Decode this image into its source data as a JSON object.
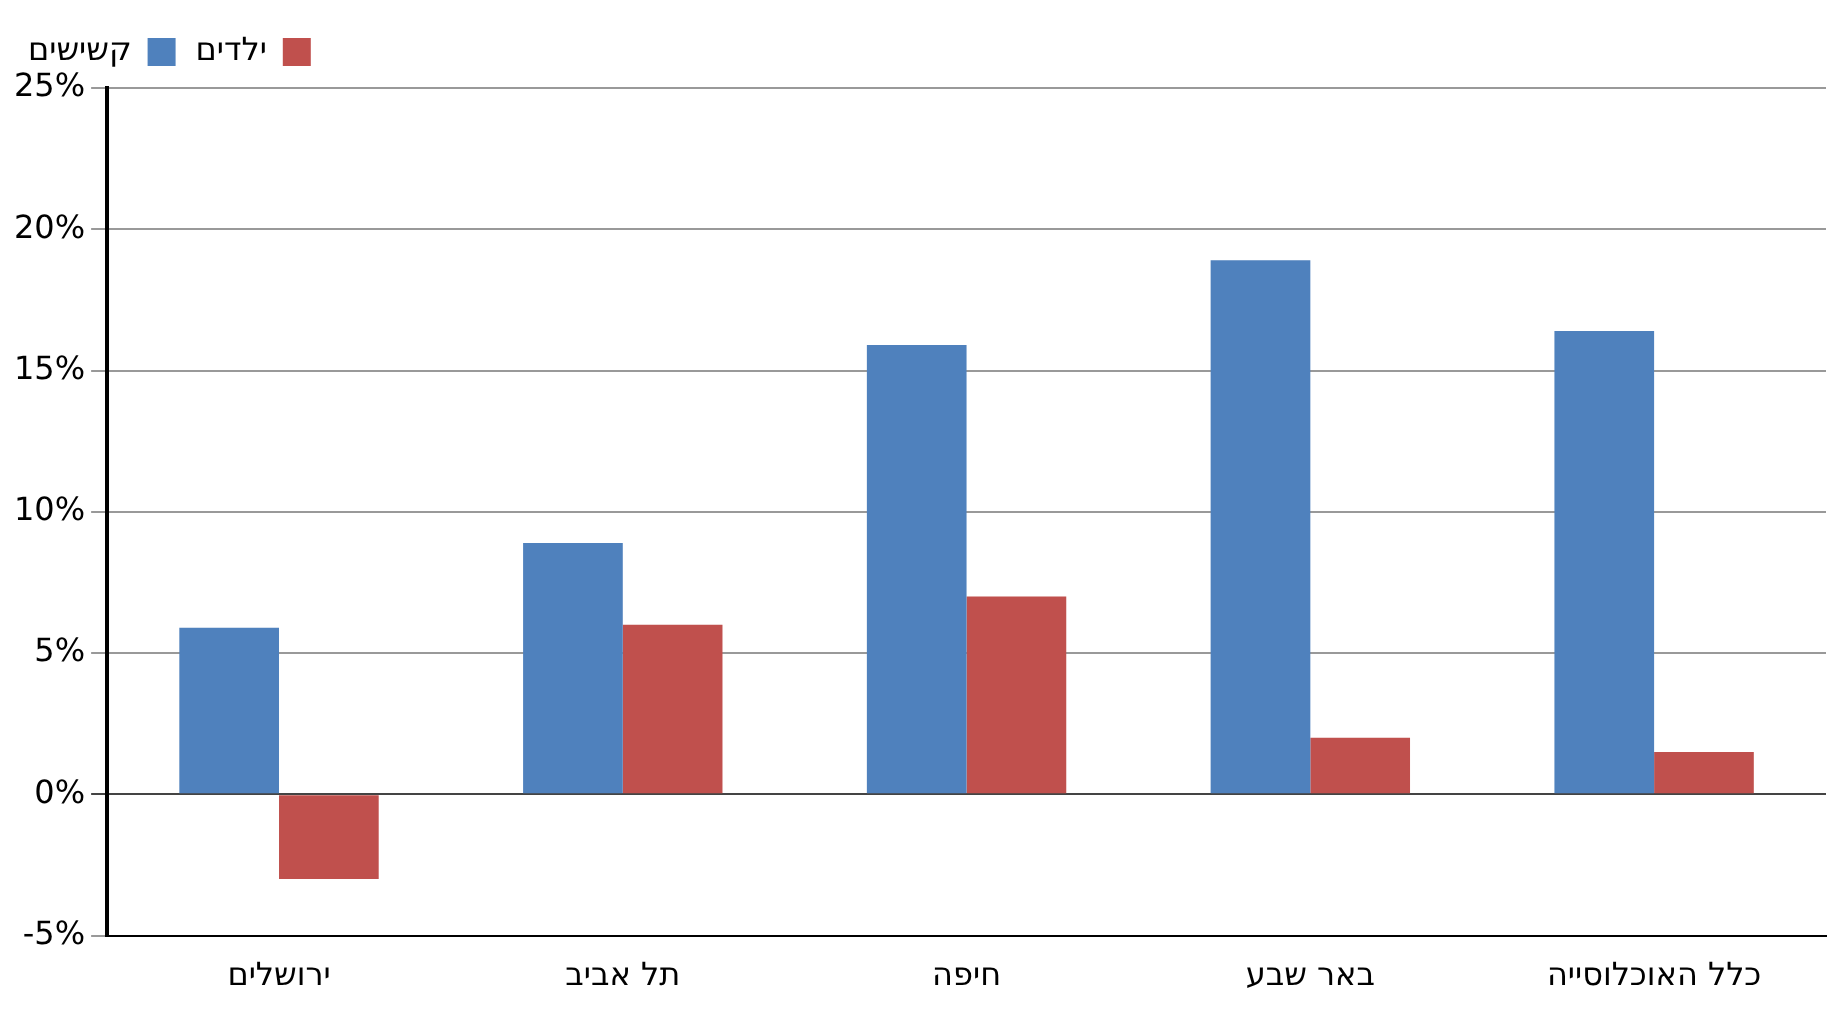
{
  "chart_data": {
    "type": "bar",
    "categories": [
      "ירושלים",
      "תל אביב",
      "חיפה",
      "באר שבע",
      "כלל האוכלוסייה"
    ],
    "series": [
      {
        "name": "קשישים",
        "color": "#4f81bd",
        "values": [
          5.9,
          8.9,
          15.9,
          18.9,
          16.4
        ]
      },
      {
        "name": "ילדים",
        "color": "#c0504d",
        "values": [
          -3.0,
          6.0,
          7.0,
          2.0,
          1.5
        ]
      }
    ],
    "ylim": [
      -5,
      25
    ],
    "yticks": [
      {
        "value": -5,
        "label": "-5%"
      },
      {
        "value": 0,
        "label": "0%"
      },
      {
        "value": 5,
        "label": "5%"
      },
      {
        "value": 10,
        "label": "10%"
      },
      {
        "value": 15,
        "label": "15%"
      },
      {
        "value": 20,
        "label": "20%"
      },
      {
        "value": 25,
        "label": "25%"
      }
    ],
    "grid": "y",
    "legend": "top left"
  }
}
